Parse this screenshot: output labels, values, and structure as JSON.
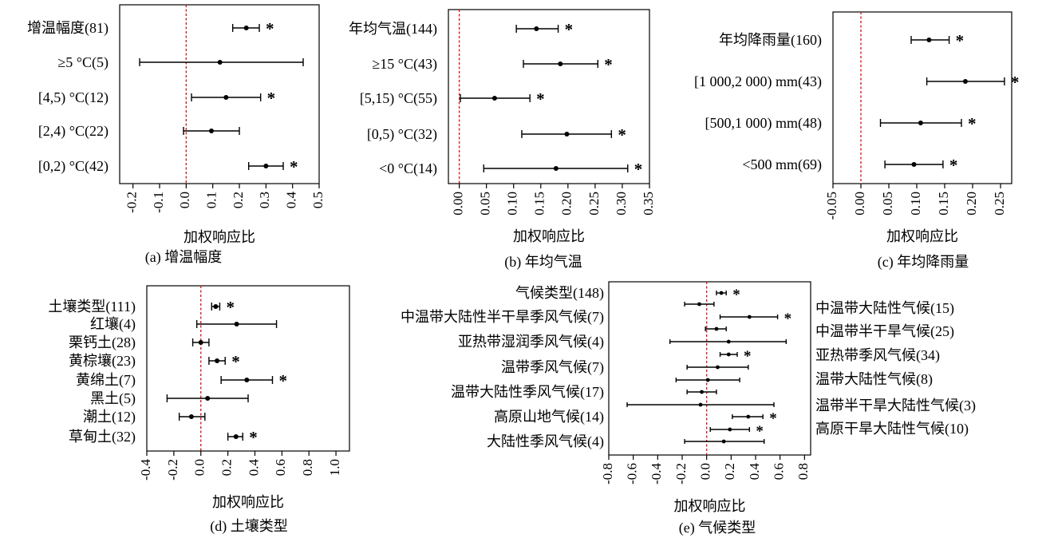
{
  "chart_data": [
    {
      "type": "forest",
      "xlabel": "加权响应比",
      "caption": "(a) 增温幅度",
      "xlim": [
        -0.25,
        0.5
      ],
      "ticks": [
        "-0.2",
        "-0.1",
        "0.0",
        "0.1",
        "0.2",
        "0.3",
        "0.4",
        "0.5"
      ],
      "tick_values": [
        -0.2,
        -0.1,
        0.0,
        0.1,
        0.2,
        0.3,
        0.4,
        0.5
      ],
      "rows": [
        {
          "label": "增温幅度(81)",
          "mean": 0.226,
          "lo": 0.175,
          "hi": 0.275,
          "sig": "*"
        },
        {
          "label": "≥5 °C(5)",
          "mean": 0.127,
          "lo": -0.175,
          "hi": 0.44,
          "sig": ""
        },
        {
          "label": "[4,5) °C(12)",
          "mean": 0.15,
          "lo": 0.02,
          "hi": 0.28,
          "sig": "*"
        },
        {
          "label": "[2,4) °C(22)",
          "mean": 0.095,
          "lo": -0.01,
          "hi": 0.2,
          "sig": ""
        },
        {
          "label": "[0,2) °C(42)",
          "mean": 0.3,
          "lo": 0.235,
          "hi": 0.365,
          "sig": "*"
        }
      ]
    },
    {
      "type": "forest",
      "xlabel": "加权响应比",
      "caption": "(b) 年均气温",
      "xlim": [
        -0.02,
        0.35
      ],
      "ticks": [
        "0.00",
        "0.05",
        "0.10",
        "0.15",
        "0.20",
        "0.25",
        "0.30",
        "0.35"
      ],
      "tick_values": [
        0.0,
        0.05,
        0.1,
        0.15,
        0.2,
        0.25,
        0.3,
        0.35
      ],
      "rows": [
        {
          "label": "年均气温(144)",
          "mean": 0.142,
          "lo": 0.105,
          "hi": 0.182,
          "sig": "*"
        },
        {
          "label": "≥15 °C(43)",
          "mean": 0.186,
          "lo": 0.118,
          "hi": 0.255,
          "sig": "*"
        },
        {
          "label": "[5,15) °C(55)",
          "mean": 0.065,
          "lo": 0.002,
          "hi": 0.13,
          "sig": "*"
        },
        {
          "label": "[0,5) °C(32)",
          "mean": 0.198,
          "lo": 0.115,
          "hi": 0.28,
          "sig": "*"
        },
        {
          "label": "<0 °C(14)",
          "mean": 0.178,
          "lo": 0.045,
          "hi": 0.31,
          "sig": "*"
        }
      ]
    },
    {
      "type": "forest",
      "xlabel": "加权响应比",
      "caption": "(c) 年均降雨量",
      "xlim": [
        -0.05,
        0.27
      ],
      "ticks": [
        "-0.05",
        "0.00",
        "0.05",
        "0.10",
        "0.15",
        "0.20",
        "0.25"
      ],
      "tick_values": [
        -0.05,
        0.0,
        0.05,
        0.1,
        0.15,
        0.2,
        0.25
      ],
      "rows": [
        {
          "label": "年均降雨量(160)",
          "mean": 0.122,
          "lo": 0.09,
          "hi": 0.158,
          "sig": "*"
        },
        {
          "label": "[1 000,2 000) mm(43)",
          "mean": 0.187,
          "lo": 0.118,
          "hi": 0.257,
          "sig": "*"
        },
        {
          "label": "[500,1 000) mm(48)",
          "mean": 0.107,
          "lo": 0.035,
          "hi": 0.18,
          "sig": "*"
        },
        {
          "label": "<500 mm(69)",
          "mean": 0.095,
          "lo": 0.043,
          "hi": 0.147,
          "sig": "*"
        }
      ]
    },
    {
      "type": "forest",
      "xlabel": "加权响应比",
      "caption": "(d) 土壤类型",
      "xlim": [
        -0.4,
        1.1
      ],
      "ticks": [
        "-0.4",
        "-0.2",
        "0.0",
        "0.2",
        "0.4",
        "0.6",
        "0.8",
        "1.0"
      ],
      "tick_values": [
        -0.4,
        -0.2,
        0.0,
        0.2,
        0.4,
        0.6,
        0.8,
        1.0
      ],
      "rows": [
        {
          "label": "土壤类型(111)",
          "mean": 0.11,
          "lo": 0.08,
          "hi": 0.14,
          "sig": "*"
        },
        {
          "label": "红壤(4)",
          "mean": 0.265,
          "lo": -0.03,
          "hi": 0.56,
          "sig": ""
        },
        {
          "label": "栗钙土(28)",
          "mean": 0.0,
          "lo": -0.06,
          "hi": 0.06,
          "sig": ""
        },
        {
          "label": "黄棕壤(23)",
          "mean": 0.12,
          "lo": 0.06,
          "hi": 0.18,
          "sig": "*"
        },
        {
          "label": "黄绵土(7)",
          "mean": 0.34,
          "lo": 0.15,
          "hi": 0.53,
          "sig": "*"
        },
        {
          "label": "黑土(5)",
          "mean": 0.05,
          "lo": -0.25,
          "hi": 0.35,
          "sig": ""
        },
        {
          "label": "潮土(12)",
          "mean": -0.07,
          "lo": -0.16,
          "hi": 0.03,
          "sig": ""
        },
        {
          "label": "草甸土(32)",
          "mean": 0.26,
          "lo": 0.2,
          "hi": 0.31,
          "sig": "*"
        }
      ]
    },
    {
      "type": "forest",
      "xlabel": "加权响应比",
      "caption": "(e) 气候类型",
      "xlim": [
        -0.8,
        0.85
      ],
      "ticks": [
        "-0.8",
        "-0.6",
        "-0.4",
        "-0.2",
        "0.0",
        "0.2",
        "0.4",
        "0.6",
        "0.8"
      ],
      "tick_values": [
        -0.8,
        -0.6,
        -0.4,
        -0.2,
        0.0,
        0.2,
        0.4,
        0.6,
        0.8
      ],
      "rows": [
        {
          "mean": 0.12,
          "lo": 0.08,
          "hi": 0.16,
          "sig": "*"
        },
        {
          "mean": -0.06,
          "lo": -0.18,
          "hi": 0.06,
          "sig": ""
        },
        {
          "mean": 0.35,
          "lo": 0.11,
          "hi": 0.58,
          "sig": "*"
        },
        {
          "mean": 0.08,
          "lo": -0.01,
          "hi": 0.16,
          "sig": ""
        },
        {
          "mean": 0.18,
          "lo": -0.3,
          "hi": 0.65,
          "sig": ""
        },
        {
          "mean": 0.18,
          "lo": 0.11,
          "hi": 0.25,
          "sig": "*"
        },
        {
          "mean": 0.09,
          "lo": -0.16,
          "hi": 0.34,
          "sig": ""
        },
        {
          "mean": 0.01,
          "lo": -0.25,
          "hi": 0.27,
          "sig": ""
        },
        {
          "mean": -0.04,
          "lo": -0.16,
          "hi": 0.08,
          "sig": ""
        },
        {
          "mean": -0.05,
          "lo": -0.65,
          "hi": 0.55,
          "sig": ""
        },
        {
          "mean": 0.34,
          "lo": 0.21,
          "hi": 0.46,
          "sig": "*"
        },
        {
          "mean": 0.19,
          "lo": 0.03,
          "hi": 0.35,
          "sig": "*"
        },
        {
          "mean": 0.14,
          "lo": -0.18,
          "hi": 0.47,
          "sig": ""
        }
      ],
      "labels_left": [
        "气候类型(148)",
        "中温带大陆性半干旱季风气候(7)",
        "亚热带湿润季风气候(4)",
        "温带季风气候(7)",
        "温带大陆性季风气候(17)",
        "高原山地气候(14)",
        "大陆性季风气候(4)"
      ],
      "labels_right": [
        "中温带大陆性气候(15)",
        "中温带半干旱气候(25)",
        "亚热带季风气候(34)",
        "温带大陆性气候(8)",
        "温带半干旱大陆性气候(3)",
        "高原干旱大陆性气候(10)"
      ]
    }
  ]
}
